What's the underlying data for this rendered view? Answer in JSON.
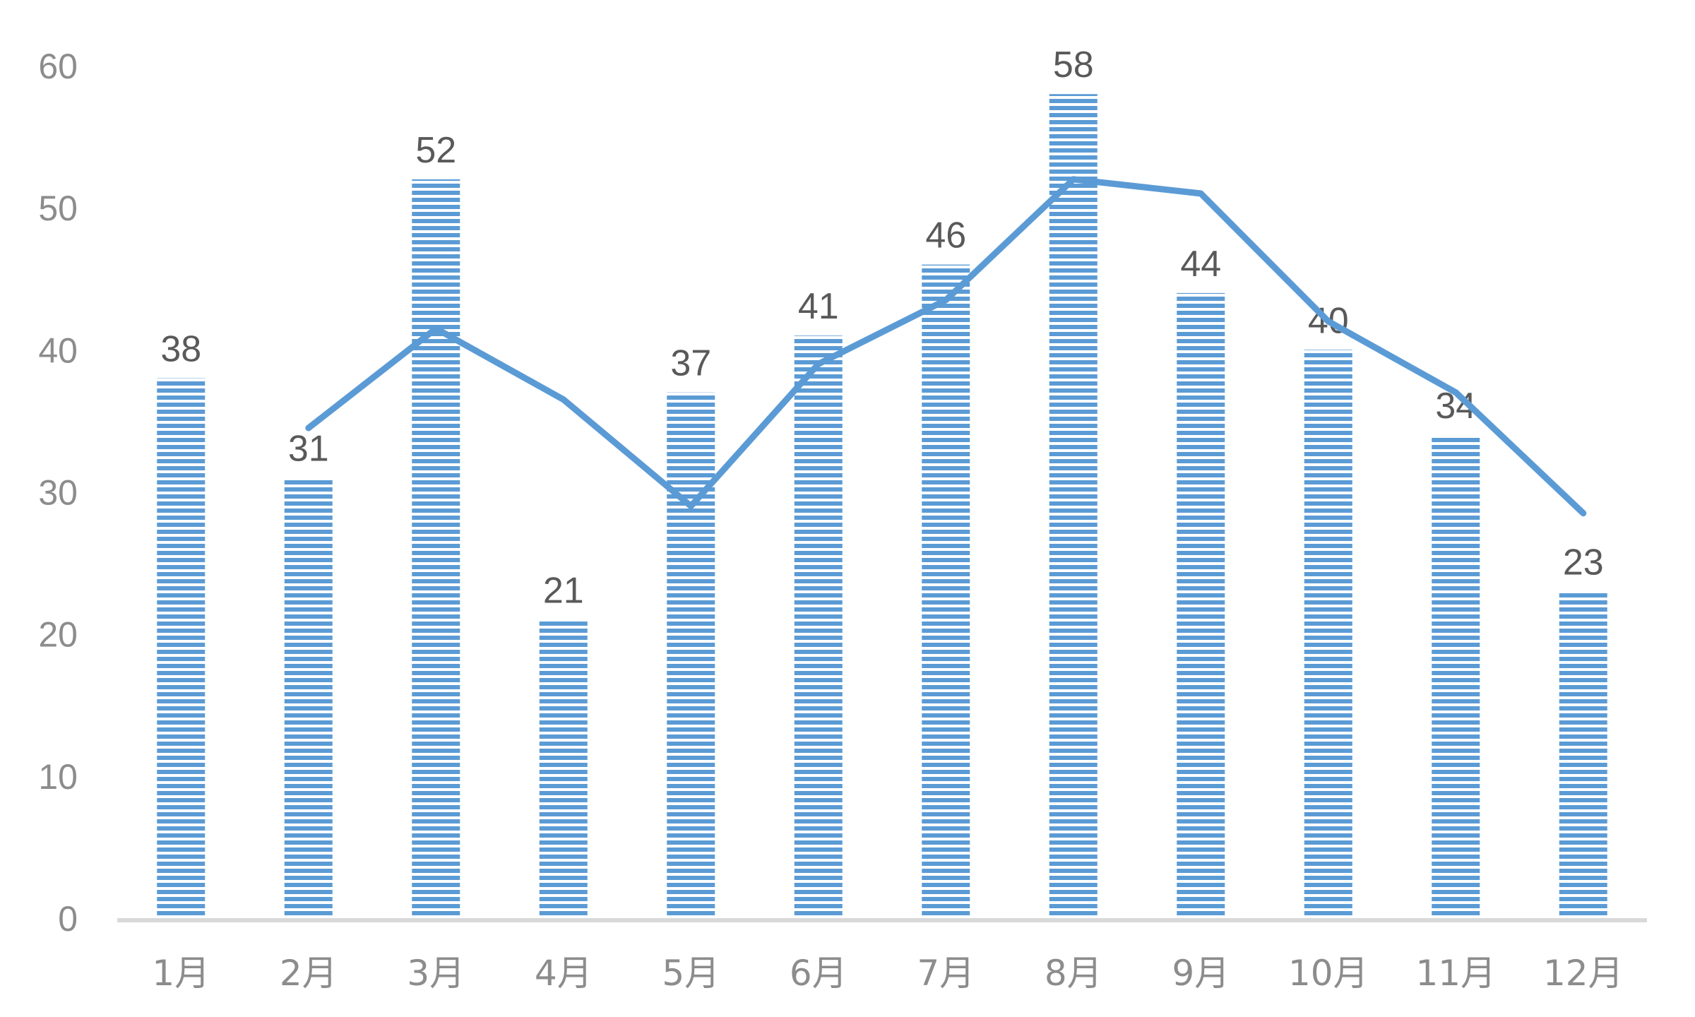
{
  "chart_data": {
    "type": "bar",
    "title": "",
    "xlabel": "",
    "ylabel": "",
    "categories": [
      "1月",
      "2月",
      "3月",
      "4月",
      "5月",
      "6月",
      "7月",
      "8月",
      "9月",
      "10月",
      "11月",
      "12月"
    ],
    "series": [
      {
        "type": "bar",
        "values": [
          38,
          31,
          52,
          21,
          37,
          41,
          46,
          58,
          44,
          40,
          34,
          23
        ],
        "color": "#5b9bd5",
        "pattern": "horizontal-stripes",
        "data_labels": true
      },
      {
        "type": "line",
        "starts_at_category": "2月",
        "values": [
          null,
          34.5,
          41.5,
          36.5,
          29,
          39,
          43.5,
          52,
          51,
          42,
          37,
          28.5
        ],
        "color": "#5b9bd5",
        "data_labels": false
      }
    ],
    "ylim": [
      0,
      60
    ],
    "yticks": [
      0,
      10,
      20,
      30,
      40,
      50,
      60
    ],
    "grid": false,
    "legend": "none",
    "colors": {
      "bar": "#5b9bd5",
      "line": "#5b9bd5",
      "axis": "#d9d9d9",
      "tick_text": "#8c8c8c",
      "label_text": "#595959"
    }
  }
}
